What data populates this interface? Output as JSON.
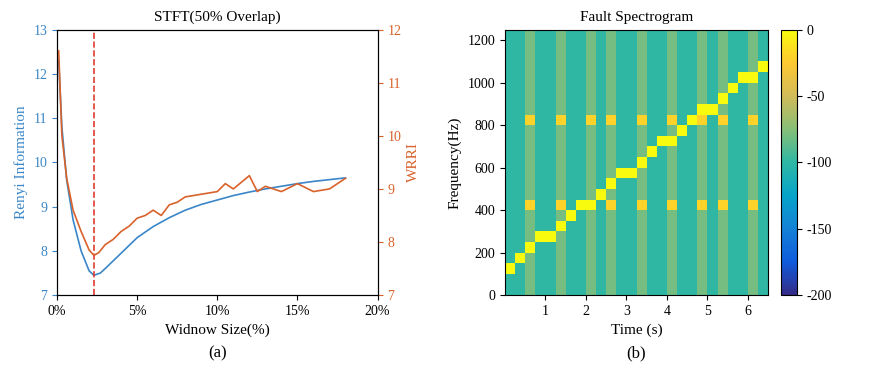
{
  "chart_data": [
    {
      "type": "line",
      "title": "STFT(50% Overlap)",
      "x_label": "Widnow Size(%)",
      "caption": "(a)",
      "xlim": [
        0,
        20
      ],
      "xticks": [
        {
          "value": 0,
          "label": "0%"
        },
        {
          "value": 5,
          "label": "5%"
        },
        {
          "value": 10,
          "label": "10%"
        },
        {
          "value": 15,
          "label": "15%"
        },
        {
          "value": 20,
          "label": "20%"
        }
      ],
      "ylim": [
        7,
        13
      ],
      "yticks": [
        7,
        8,
        9,
        10,
        11,
        12,
        13
      ],
      "y2lim": [
        7,
        12
      ],
      "y2ticks": [
        7,
        8,
        9,
        10,
        11,
        12
      ],
      "vline": {
        "value": 2.3,
        "color": "#e03c31",
        "line_style": "dashed"
      },
      "series": [
        {
          "name": "Renyi Information",
          "color": "#3a86c8",
          "x": [
            0.1,
            0.3,
            0.6,
            1.0,
            1.5,
            2.0,
            2.3,
            2.7,
            3.0,
            4,
            5,
            6,
            7,
            8,
            9,
            10,
            11,
            12,
            13,
            14,
            15,
            16,
            17,
            18
          ],
          "values": [
            12.3,
            10.8,
            9.6,
            8.7,
            8.0,
            7.55,
            7.45,
            7.5,
            7.6,
            7.95,
            8.3,
            8.55,
            8.75,
            8.92,
            9.05,
            9.15,
            9.25,
            9.33,
            9.4,
            9.46,
            9.52,
            9.57,
            9.61,
            9.65
          ]
        },
        {
          "name": "WRRI",
          "color": "#d9622b",
          "axis": "y2",
          "x": [
            0.1,
            0.3,
            0.6,
            1.0,
            1.5,
            2.0,
            2.3,
            2.6,
            3.0,
            3.5,
            4.0,
            4.5,
            5.0,
            5.5,
            6.0,
            6.5,
            7,
            7.5,
            8,
            9,
            10,
            10.5,
            11,
            12,
            12.5,
            13,
            14,
            15,
            16,
            17,
            18
          ],
          "values": [
            11.6,
            10.0,
            9.2,
            8.6,
            8.2,
            7.85,
            7.75,
            7.8,
            7.95,
            8.05,
            8.2,
            8.3,
            8.45,
            8.5,
            8.6,
            8.5,
            8.7,
            8.75,
            8.85,
            8.9,
            8.95,
            9.1,
            9.0,
            9.25,
            8.95,
            9.05,
            8.95,
            9.1,
            8.95,
            9.0,
            9.2
          ]
        }
      ]
    },
    {
      "type": "heatmap",
      "title": "Fault Spectrogram",
      "x_label": "Time (s)",
      "y_label": "Frequency(Hz)",
      "caption": "(b)",
      "xlim": [
        0,
        6.5
      ],
      "xticks": [
        1,
        2,
        3,
        4,
        5,
        6
      ],
      "ylim": [
        0,
        1250
      ],
      "yticks": [
        0,
        200,
        400,
        600,
        800,
        1000,
        1200
      ],
      "colorbar_range": [
        -200,
        0
      ],
      "colorbar_ticks": [
        -200,
        -150,
        -100,
        -50,
        0
      ],
      "x_edges": [
        0,
        0.25,
        0.5,
        0.75,
        1.0,
        1.25,
        1.5,
        1.75,
        2.0,
        2.25,
        2.5,
        2.75,
        3.0,
        3.25,
        3.5,
        3.75,
        4.0,
        4.25,
        4.5,
        4.75,
        5.0,
        5.25,
        5.5,
        5.75,
        6.0,
        6.25,
        6.5
      ],
      "y_edges": [
        0,
        50,
        100,
        150,
        200,
        250,
        300,
        350,
        400,
        450,
        500,
        550,
        600,
        650,
        700,
        750,
        800,
        850,
        900,
        950,
        1000,
        1050,
        1100,
        1150,
        1200,
        1250
      ],
      "cells": [
        [
          -100,
          -100,
          -80,
          -100,
          -100,
          -80,
          -100,
          -100,
          -80,
          -100,
          -80,
          -100,
          -100,
          -80,
          -100,
          -100,
          -80,
          -100,
          -100,
          -80,
          -100,
          -80,
          -100,
          -100,
          -80,
          -100
        ],
        [
          -100,
          -100,
          -80,
          -100,
          -100,
          -80,
          -100,
          -100,
          -80,
          -100,
          -80,
          -100,
          -100,
          -80,
          -100,
          -100,
          -80,
          -100,
          -100,
          -80,
          -100,
          -80,
          -100,
          -100,
          -80,
          -100
        ],
        [
          0,
          -100,
          -80,
          -100,
          -100,
          -80,
          -100,
          -100,
          -80,
          -100,
          -80,
          -100,
          -100,
          -80,
          -100,
          -100,
          -80,
          -100,
          -100,
          -80,
          -100,
          -80,
          -100,
          -100,
          -80,
          -100
        ],
        [
          -100,
          0,
          -80,
          -100,
          -100,
          -80,
          -100,
          -100,
          -80,
          -100,
          -80,
          -100,
          -100,
          -80,
          -100,
          -100,
          -80,
          -100,
          -100,
          -80,
          -100,
          -80,
          -100,
          -100,
          -80,
          -100
        ],
        [
          -100,
          -100,
          0,
          -100,
          -100,
          -80,
          -100,
          -100,
          -80,
          -100,
          -80,
          -100,
          -100,
          -80,
          -100,
          -100,
          -80,
          -100,
          -100,
          -80,
          -100,
          -80,
          -100,
          -100,
          -80,
          -100
        ],
        [
          -100,
          -100,
          -80,
          0,
          0,
          -80,
          -100,
          -100,
          -80,
          -100,
          -80,
          -100,
          -100,
          -80,
          -100,
          -100,
          -80,
          -100,
          -100,
          -80,
          -100,
          -80,
          -100,
          -100,
          -80,
          -100
        ],
        [
          -100,
          -100,
          -80,
          -100,
          -100,
          0,
          -100,
          -100,
          -80,
          -100,
          -80,
          -100,
          -100,
          -80,
          -100,
          -100,
          -80,
          -100,
          -100,
          -80,
          -100,
          -80,
          -100,
          -100,
          -80,
          -100
        ],
        [
          -100,
          -100,
          -80,
          -100,
          -100,
          -80,
          0,
          -100,
          -80,
          -100,
          -80,
          -100,
          -100,
          -80,
          -100,
          -100,
          -80,
          -100,
          -100,
          -80,
          -100,
          -80,
          -100,
          -100,
          -80,
          -100
        ],
        [
          -100,
          -100,
          -20,
          -100,
          -100,
          -20,
          -100,
          0,
          0,
          -100,
          -20,
          -100,
          -100,
          -20,
          -100,
          -100,
          -20,
          -100,
          -100,
          -20,
          -100,
          -20,
          -100,
          -100,
          -20,
          -100
        ],
        [
          -100,
          -100,
          -80,
          -100,
          -100,
          -80,
          -100,
          -100,
          -80,
          0,
          -80,
          -100,
          -100,
          -80,
          -100,
          -100,
          -80,
          -100,
          -100,
          -80,
          -100,
          -80,
          -100,
          -100,
          -80,
          -100
        ],
        [
          -100,
          -100,
          -80,
          -100,
          -100,
          -80,
          -100,
          -100,
          -80,
          -100,
          0,
          -100,
          -100,
          -80,
          -100,
          -100,
          -80,
          -100,
          -100,
          -80,
          -100,
          -80,
          -100,
          -100,
          -80,
          -100
        ],
        [
          -100,
          -100,
          -80,
          -100,
          -100,
          -80,
          -100,
          -100,
          -80,
          -100,
          -80,
          0,
          0,
          -80,
          -100,
          -100,
          -80,
          -100,
          -100,
          -80,
          -100,
          -80,
          -100,
          -100,
          -80,
          -100
        ],
        [
          -100,
          -100,
          -80,
          -100,
          -100,
          -80,
          -100,
          -100,
          -80,
          -100,
          -80,
          -100,
          -100,
          0,
          -100,
          -100,
          -80,
          -100,
          -100,
          -80,
          -100,
          -80,
          -100,
          -100,
          -80,
          -100
        ],
        [
          -100,
          -100,
          -80,
          -100,
          -100,
          -80,
          -100,
          -100,
          -80,
          -100,
          -80,
          -100,
          -100,
          -80,
          0,
          -100,
          -80,
          -100,
          -100,
          -80,
          -100,
          -80,
          -100,
          -100,
          -80,
          -100
        ],
        [
          -100,
          -100,
          -80,
          -100,
          -100,
          -80,
          -100,
          -100,
          -80,
          -100,
          -80,
          -100,
          -100,
          -80,
          -100,
          0,
          0,
          -100,
          -100,
          -80,
          -100,
          -80,
          -100,
          -100,
          -80,
          -100
        ],
        [
          -100,
          -100,
          -80,
          -100,
          -100,
          -80,
          -100,
          -100,
          -80,
          -100,
          -80,
          -100,
          -100,
          -80,
          -100,
          -100,
          -80,
          0,
          -100,
          -80,
          -100,
          -80,
          -100,
          -100,
          -80,
          -100
        ],
        [
          -100,
          -100,
          -20,
          -100,
          -100,
          -20,
          -100,
          -100,
          -20,
          -100,
          -20,
          -100,
          -100,
          -20,
          -100,
          -100,
          -20,
          -100,
          0,
          -20,
          -100,
          -20,
          -100,
          -100,
          -20,
          -100
        ],
        [
          -100,
          -100,
          -80,
          -100,
          -100,
          -80,
          -100,
          -100,
          -80,
          -100,
          -80,
          -100,
          -100,
          -80,
          -100,
          -100,
          -80,
          -100,
          -100,
          0,
          0,
          -80,
          -100,
          -100,
          -80,
          -100
        ],
        [
          -100,
          -100,
          -80,
          -100,
          -100,
          -80,
          -100,
          -100,
          -80,
          -100,
          -80,
          -100,
          -100,
          -80,
          -100,
          -100,
          -80,
          -100,
          -100,
          -80,
          -100,
          0,
          -100,
          -100,
          -80,
          -100
        ],
        [
          -100,
          -100,
          -80,
          -100,
          -100,
          -80,
          -100,
          -100,
          -80,
          -100,
          -80,
          -100,
          -100,
          -80,
          -100,
          -100,
          -80,
          -100,
          -100,
          -80,
          -100,
          -80,
          0,
          -100,
          -80,
          -100
        ],
        [
          -100,
          -100,
          -80,
          -100,
          -100,
          -80,
          -100,
          -100,
          -80,
          -100,
          -80,
          -100,
          -100,
          -80,
          -100,
          -100,
          -80,
          -100,
          -100,
          -80,
          -100,
          -80,
          -100,
          0,
          0,
          -100
        ],
        [
          -100,
          -100,
          -80,
          -100,
          -100,
          -80,
          -100,
          -100,
          -80,
          -100,
          -80,
          -100,
          -100,
          -80,
          -100,
          -100,
          -80,
          -100,
          -100,
          -80,
          -100,
          -80,
          -100,
          -100,
          -80,
          0
        ],
        [
          -100,
          -100,
          -80,
          -100,
          -100,
          -80,
          -100,
          -100,
          -80,
          -100,
          -80,
          -100,
          -100,
          -80,
          -100,
          -100,
          -80,
          -100,
          -100,
          -80,
          -100,
          -80,
          -100,
          -100,
          -80,
          -100
        ],
        [
          -100,
          -100,
          -80,
          -100,
          -100,
          -80,
          -100,
          -100,
          -80,
          -100,
          -80,
          -100,
          -100,
          -80,
          -100,
          -100,
          -80,
          -100,
          -100,
          -80,
          -100,
          -80,
          -100,
          -100,
          -80,
          -100
        ],
        [
          -100,
          -100,
          -80,
          -100,
          -100,
          -80,
          -100,
          -100,
          -80,
          -100,
          -80,
          -100,
          -100,
          -80,
          -100,
          -100,
          -80,
          -100,
          -100,
          -80,
          -100,
          -80,
          -100,
          -100,
          -80,
          -100
        ]
      ]
    }
  ]
}
